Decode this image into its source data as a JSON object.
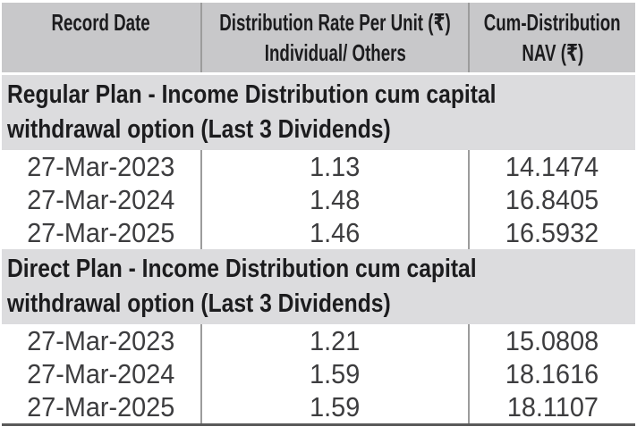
{
  "table": {
    "header": {
      "record_date": "Record Date",
      "rate_line1": "Distribution Rate Per Unit (₹)",
      "rate_line2": "Individual/ Others",
      "nav_line1": "Cum-Distribution",
      "nav_line2": "NAV (₹)"
    },
    "sections": [
      {
        "title": "Regular Plan - Income Distribution cum capital withdrawal option (Last 3 Dividends)",
        "rows": [
          {
            "record_date": "27-Mar-2023",
            "rate": "1.13",
            "nav": "14.1474"
          },
          {
            "record_date": "27-Mar-2024",
            "rate": "1.48",
            "nav": "16.8405"
          },
          {
            "record_date": "27-Mar-2025",
            "rate": "1.46",
            "nav": "16.5932"
          }
        ]
      },
      {
        "title": "Direct Plan - Income Distribution cum capital withdrawal option (Last 3 Dividends)",
        "rows": [
          {
            "record_date": "27-Mar-2023",
            "rate": "1.21",
            "nav": "15.0808"
          },
          {
            "record_date": "27-Mar-2024",
            "rate": "1.59",
            "nav": "18.1616"
          },
          {
            "record_date": "27-Mar-2025",
            "rate": "1.59",
            "nav": "18.1107"
          }
        ]
      }
    ]
  },
  "colors": {
    "header_bg": "#c8c8ca",
    "section_bg": "#dcdcde",
    "sep": "#9c9c9c",
    "head_fg": "#1c1c1e",
    "data_fg": "#3d3d3f",
    "rule": "#5a5a5a"
  }
}
